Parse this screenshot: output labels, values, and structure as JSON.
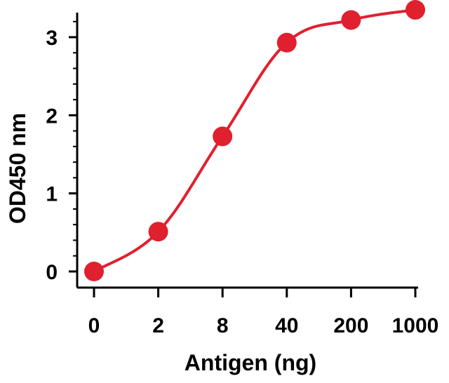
{
  "chart_data": {
    "type": "line",
    "title": "",
    "xlabel": "Antigen (ng)",
    "ylabel": "OD450 nm",
    "categories": [
      "0",
      "2",
      "8",
      "40",
      "200",
      "1000"
    ],
    "yticks": [
      "0",
      "1",
      "2",
      "3"
    ],
    "ylim": [
      0,
      3.3
    ],
    "series": [
      {
        "values": [
          0.0,
          0.51,
          1.73,
          2.93,
          3.22,
          3.35
        ],
        "color": "#e0202f"
      }
    ],
    "grid": false,
    "legend": "none",
    "marker": "circle",
    "line_style": "smooth"
  }
}
